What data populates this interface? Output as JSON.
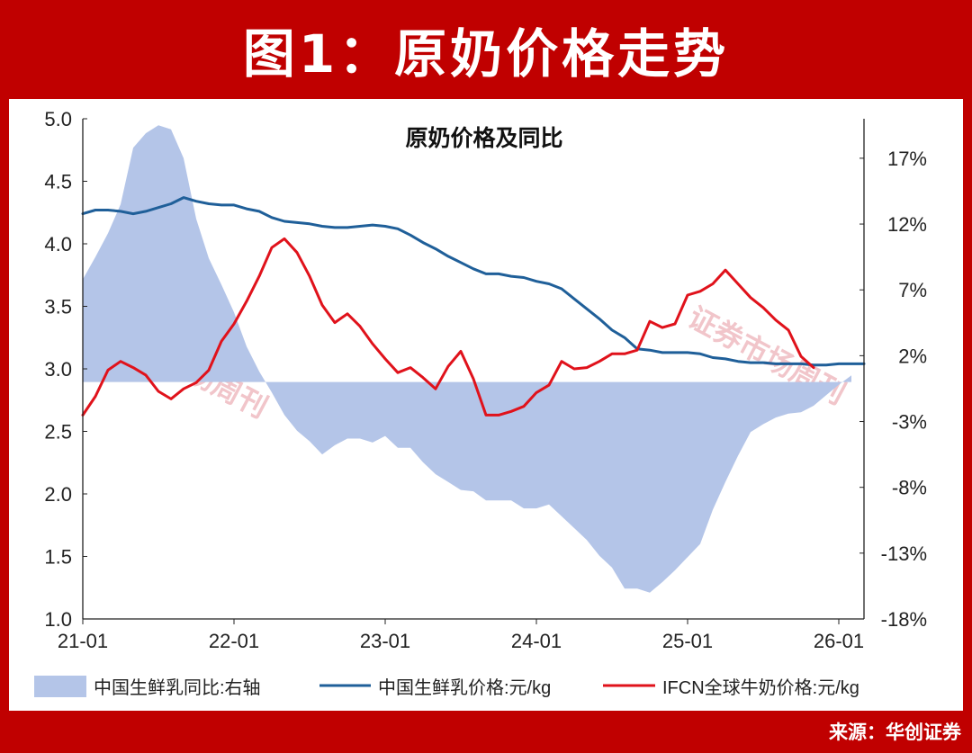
{
  "banner": {
    "title": "图1：原奶价格走势"
  },
  "source": {
    "text": "来源：华创证券"
  },
  "watermark": {
    "text": "证券市场周刊"
  },
  "colors": {
    "background": "#C00000",
    "area_fill": "#B4C5E8",
    "blue_line": "#1F5F99",
    "red_line": "#E0121B",
    "watermark": "#E8A0A8"
  },
  "chart_data": {
    "type": "line",
    "title": "原奶价格及同比",
    "x_ticks": [
      "21-01",
      "22-01",
      "23-01",
      "24-01",
      "25-01",
      "26-01"
    ],
    "x_range": [
      "2021-01",
      "2026-03"
    ],
    "ylim_left": [
      1.0,
      5.0
    ],
    "yticks_left": [
      "5.0",
      "4.5",
      "4.0",
      "3.5",
      "3.0",
      "2.5",
      "2.0",
      "1.5",
      "1.0"
    ],
    "ylim_right": [
      -18,
      20
    ],
    "yticks_right": [
      "17%",
      "12%",
      "7%",
      "2%",
      "-3%",
      "-8%",
      "-13%",
      "-18%"
    ],
    "series": [
      {
        "name": "中国生鲜乳同比:右轴",
        "type": "area",
        "axis": "right",
        "points": [
          [
            "2021-01",
            7.8
          ],
          [
            "2021-02",
            9.5
          ],
          [
            "2021-03",
            11.3
          ],
          [
            "2021-04",
            13.5
          ],
          [
            "2021-05",
            17.8
          ],
          [
            "2021-06",
            18.9
          ],
          [
            "2021-07",
            19.5
          ],
          [
            "2021-08",
            19.2
          ],
          [
            "2021-09",
            17.0
          ],
          [
            "2021-10",
            12.4
          ],
          [
            "2021-11",
            9.4
          ],
          [
            "2021-12",
            7.4
          ],
          [
            "2022-01",
            5.3
          ],
          [
            "2022-02",
            2.7
          ],
          [
            "2022-03",
            0.8
          ],
          [
            "2022-04",
            -0.8
          ],
          [
            "2022-05",
            -2.5
          ],
          [
            "2022-06",
            -3.7
          ],
          [
            "2022-07",
            -4.5
          ],
          [
            "2022-08",
            -5.5
          ],
          [
            "2022-09",
            -4.8
          ],
          [
            "2022-10",
            -4.3
          ],
          [
            "2022-11",
            -4.3
          ],
          [
            "2022-12",
            -4.6
          ],
          [
            "2023-01",
            -4.1
          ],
          [
            "2023-02",
            -5.0
          ],
          [
            "2023-03",
            -5.0
          ],
          [
            "2023-04",
            -6.1
          ],
          [
            "2023-05",
            -7.0
          ],
          [
            "2023-06",
            -7.6
          ],
          [
            "2023-07",
            -8.2
          ],
          [
            "2023-08",
            -8.3
          ],
          [
            "2023-09",
            -9.0
          ],
          [
            "2023-10",
            -9.0
          ],
          [
            "2023-11",
            -9.0
          ],
          [
            "2023-12",
            -9.6
          ],
          [
            "2024-01",
            -9.6
          ],
          [
            "2024-02",
            -9.3
          ],
          [
            "2024-03",
            -10.2
          ],
          [
            "2024-04",
            -11.1
          ],
          [
            "2024-05",
            -12.0
          ],
          [
            "2024-06",
            -13.2
          ],
          [
            "2024-07",
            -14.1
          ],
          [
            "2024-08",
            -15.7
          ],
          [
            "2024-09",
            -15.7
          ],
          [
            "2024-10",
            -16.0
          ],
          [
            "2024-11",
            -15.2
          ],
          [
            "2024-12",
            -14.3
          ],
          [
            "2025-01",
            -13.3
          ],
          [
            "2025-02",
            -12.3
          ],
          [
            "2025-03",
            -9.7
          ],
          [
            "2025-04",
            -7.6
          ],
          [
            "2025-05",
            -5.6
          ],
          [
            "2025-06",
            -3.8
          ],
          [
            "2025-07",
            -3.2
          ],
          [
            "2025-08",
            -2.7
          ],
          [
            "2025-09",
            -2.4
          ],
          [
            "2025-10",
            -2.3
          ],
          [
            "2025-11",
            -1.8
          ],
          [
            "2025-12",
            -1.0
          ],
          [
            "2026-01",
            -0.2
          ],
          [
            "2026-02",
            0.5
          ]
        ]
      },
      {
        "name": "中国生鲜乳价格:元/kg",
        "type": "line",
        "axis": "left",
        "points": [
          [
            "2021-01",
            4.24
          ],
          [
            "2021-02",
            4.27
          ],
          [
            "2021-03",
            4.27
          ],
          [
            "2021-04",
            4.26
          ],
          [
            "2021-05",
            4.24
          ],
          [
            "2021-06",
            4.26
          ],
          [
            "2021-07",
            4.29
          ],
          [
            "2021-08",
            4.32
          ],
          [
            "2021-09",
            4.37
          ],
          [
            "2021-10",
            4.34
          ],
          [
            "2021-11",
            4.32
          ],
          [
            "2021-12",
            4.31
          ],
          [
            "2022-01",
            4.31
          ],
          [
            "2022-02",
            4.28
          ],
          [
            "2022-03",
            4.26
          ],
          [
            "2022-04",
            4.21
          ],
          [
            "2022-05",
            4.18
          ],
          [
            "2022-06",
            4.17
          ],
          [
            "2022-07",
            4.16
          ],
          [
            "2022-08",
            4.14
          ],
          [
            "2022-09",
            4.13
          ],
          [
            "2022-10",
            4.13
          ],
          [
            "2022-11",
            4.14
          ],
          [
            "2022-12",
            4.15
          ],
          [
            "2023-01",
            4.14
          ],
          [
            "2023-02",
            4.12
          ],
          [
            "2023-03",
            4.07
          ],
          [
            "2023-04",
            4.01
          ],
          [
            "2023-05",
            3.96
          ],
          [
            "2023-06",
            3.9
          ],
          [
            "2023-07",
            3.85
          ],
          [
            "2023-08",
            3.8
          ],
          [
            "2023-09",
            3.76
          ],
          [
            "2023-10",
            3.76
          ],
          [
            "2023-11",
            3.74
          ],
          [
            "2023-12",
            3.73
          ],
          [
            "2024-01",
            3.7
          ],
          [
            "2024-02",
            3.68
          ],
          [
            "2024-03",
            3.64
          ],
          [
            "2024-04",
            3.56
          ],
          [
            "2024-05",
            3.48
          ],
          [
            "2024-06",
            3.4
          ],
          [
            "2024-07",
            3.31
          ],
          [
            "2024-08",
            3.25
          ],
          [
            "2024-09",
            3.16
          ],
          [
            "2024-10",
            3.15
          ],
          [
            "2024-11",
            3.13
          ],
          [
            "2024-12",
            3.13
          ],
          [
            "2025-01",
            3.13
          ],
          [
            "2025-02",
            3.12
          ],
          [
            "2025-03",
            3.09
          ],
          [
            "2025-04",
            3.08
          ],
          [
            "2025-05",
            3.06
          ],
          [
            "2025-06",
            3.05
          ],
          [
            "2025-07",
            3.05
          ],
          [
            "2025-08",
            3.04
          ],
          [
            "2025-09",
            3.04
          ],
          [
            "2025-10",
            3.04
          ],
          [
            "2025-11",
            3.03
          ],
          [
            "2025-12",
            3.03
          ],
          [
            "2026-01",
            3.04
          ],
          [
            "2026-02",
            3.04
          ],
          [
            "2026-03",
            3.04
          ]
        ]
      },
      {
        "name": "IFCN全球牛奶价格:元/kg",
        "type": "line",
        "axis": "left",
        "points": [
          [
            "2021-01",
            2.63
          ],
          [
            "2021-02",
            2.78
          ],
          [
            "2021-03",
            2.99
          ],
          [
            "2021-04",
            3.06
          ],
          [
            "2021-05",
            3.01
          ],
          [
            "2021-06",
            2.95
          ],
          [
            "2021-07",
            2.82
          ],
          [
            "2021-08",
            2.76
          ],
          [
            "2021-09",
            2.84
          ],
          [
            "2021-10",
            2.89
          ],
          [
            "2021-11",
            2.99
          ],
          [
            "2021-12",
            3.22
          ],
          [
            "2022-01",
            3.36
          ],
          [
            "2022-02",
            3.54
          ],
          [
            "2022-03",
            3.74
          ],
          [
            "2022-04",
            3.97
          ],
          [
            "2022-05",
            4.04
          ],
          [
            "2022-06",
            3.93
          ],
          [
            "2022-07",
            3.74
          ],
          [
            "2022-08",
            3.51
          ],
          [
            "2022-09",
            3.37
          ],
          [
            "2022-10",
            3.44
          ],
          [
            "2022-11",
            3.34
          ],
          [
            "2022-12",
            3.2
          ],
          [
            "2023-01",
            3.08
          ],
          [
            "2023-02",
            2.97
          ],
          [
            "2023-03",
            3.01
          ],
          [
            "2023-04",
            2.93
          ],
          [
            "2023-05",
            2.84
          ],
          [
            "2023-06",
            3.02
          ],
          [
            "2023-07",
            3.14
          ],
          [
            "2023-08",
            2.92
          ],
          [
            "2023-09",
            2.63
          ],
          [
            "2023-10",
            2.63
          ],
          [
            "2023-11",
            2.66
          ],
          [
            "2023-12",
            2.7
          ],
          [
            "2024-01",
            2.81
          ],
          [
            "2024-02",
            2.87
          ],
          [
            "2024-03",
            3.06
          ],
          [
            "2024-04",
            3.0
          ],
          [
            "2024-05",
            3.01
          ],
          [
            "2024-06",
            3.06
          ],
          [
            "2024-07",
            3.12
          ],
          [
            "2024-08",
            3.12
          ],
          [
            "2024-09",
            3.15
          ],
          [
            "2024-10",
            3.38
          ],
          [
            "2024-11",
            3.33
          ],
          [
            "2024-12",
            3.36
          ],
          [
            "2025-01",
            3.59
          ],
          [
            "2025-02",
            3.62
          ],
          [
            "2025-03",
            3.68
          ],
          [
            "2025-04",
            3.79
          ],
          [
            "2025-05",
            3.68
          ],
          [
            "2025-06",
            3.57
          ],
          [
            "2025-07",
            3.49
          ],
          [
            "2025-08",
            3.39
          ],
          [
            "2025-09",
            3.31
          ],
          [
            "2025-10",
            3.1
          ],
          [
            "2025-11",
            3.01
          ]
        ]
      }
    ],
    "legend": {
      "placement": "bottom",
      "entries": [
        "中国生鲜乳同比:右轴",
        "中国生鲜乳价格:元/kg",
        "IFCN全球牛奶价格:元/kg"
      ]
    },
    "grid": false
  }
}
